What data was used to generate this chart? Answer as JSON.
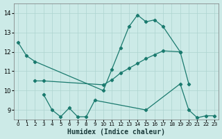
{
  "xlabel": "Humidex (Indice chaleur)",
  "xlim": [
    -0.5,
    23.5
  ],
  "ylim": [
    8.5,
    14.5
  ],
  "yticks": [
    9,
    10,
    11,
    12,
    13,
    14
  ],
  "xticks": [
    0,
    1,
    2,
    3,
    4,
    5,
    6,
    7,
    8,
    9,
    10,
    11,
    12,
    13,
    14,
    15,
    16,
    17,
    18,
    19,
    20,
    21,
    22,
    23
  ],
  "bg_color": "#cceae7",
  "grid_color": "#add4d0",
  "line_color": "#1a7a6e",
  "lines": [
    {
      "x": [
        0,
        1,
        2,
        10,
        11,
        12,
        13,
        14,
        15,
        16,
        17,
        19
      ],
      "y": [
        12.5,
        11.8,
        11.5,
        10.0,
        11.1,
        12.2,
        13.3,
        13.9,
        13.55,
        13.65,
        13.3,
        12.0
      ]
    },
    {
      "x": [
        2,
        3,
        10,
        11,
        12,
        13,
        14,
        15,
        16,
        17,
        19,
        20
      ],
      "y": [
        10.5,
        10.5,
        10.3,
        10.55,
        10.9,
        11.15,
        11.4,
        11.65,
        11.85,
        12.05,
        12.0,
        10.35
      ]
    },
    {
      "x": [
        3,
        4,
        5,
        6,
        7,
        8,
        9,
        15,
        19,
        20,
        21,
        22,
        23
      ],
      "y": [
        9.8,
        9.0,
        8.65,
        9.1,
        8.65,
        8.65,
        9.5,
        9.0,
        10.35,
        9.0,
        8.6,
        8.7,
        8.7
      ]
    }
  ]
}
